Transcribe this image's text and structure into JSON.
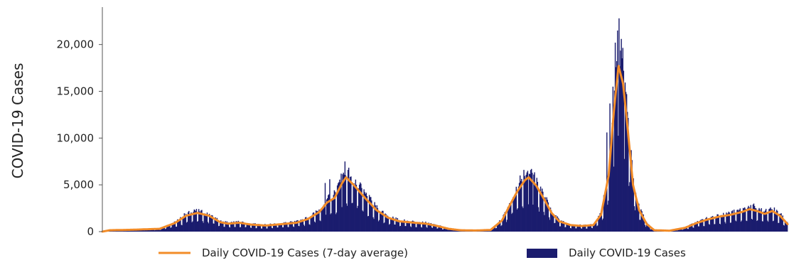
{
  "chart_data": {
    "type": "bar",
    "ylabel": "COVID-19 Cases",
    "xlabel": "",
    "ylim": [
      0,
      24000
    ],
    "yticks": [
      0,
      5000,
      10000,
      15000,
      20000
    ],
    "ytick_labels": [
      "0",
      "5,000",
      "10,000",
      "15,000",
      "20,000"
    ],
    "grid": false,
    "legend_position": "bottom",
    "series": [
      {
        "name": "Daily COVID-19 Cases (7-day average)",
        "kind": "line",
        "color": "#F28C28",
        "keypoints": [
          [
            0,
            0
          ],
          [
            10,
            150
          ],
          [
            40,
            200
          ],
          [
            75,
            300
          ],
          [
            95,
            900
          ],
          [
            110,
            1700
          ],
          [
            125,
            2000
          ],
          [
            140,
            1700
          ],
          [
            155,
            1000
          ],
          [
            165,
            850
          ],
          [
            180,
            950
          ],
          [
            195,
            750
          ],
          [
            215,
            650
          ],
          [
            235,
            800
          ],
          [
            255,
            950
          ],
          [
            270,
            1350
          ],
          [
            285,
            2100
          ],
          [
            295,
            3100
          ],
          [
            305,
            3600
          ],
          [
            315,
            5200
          ],
          [
            320,
            5800
          ],
          [
            330,
            5000
          ],
          [
            345,
            3600
          ],
          [
            360,
            2300
          ],
          [
            375,
            1500
          ],
          [
            390,
            1100
          ],
          [
            410,
            950
          ],
          [
            425,
            850
          ],
          [
            440,
            600
          ],
          [
            455,
            300
          ],
          [
            470,
            150
          ],
          [
            490,
            120
          ],
          [
            510,
            180
          ],
          [
            525,
            1200
          ],
          [
            535,
            2800
          ],
          [
            545,
            4300
          ],
          [
            555,
            5500
          ],
          [
            560,
            5800
          ],
          [
            570,
            4900
          ],
          [
            580,
            3500
          ],
          [
            590,
            2000
          ],
          [
            600,
            1100
          ],
          [
            615,
            700
          ],
          [
            630,
            600
          ],
          [
            645,
            700
          ],
          [
            655,
            1800
          ],
          [
            665,
            6000
          ],
          [
            672,
            13000
          ],
          [
            678,
            17700
          ],
          [
            684,
            15800
          ],
          [
            690,
            11000
          ],
          [
            697,
            5000
          ],
          [
            705,
            2300
          ],
          [
            715,
            800
          ],
          [
            725,
            150
          ],
          [
            745,
            100
          ],
          [
            765,
            400
          ],
          [
            780,
            900
          ],
          [
            795,
            1300
          ],
          [
            810,
            1600
          ],
          [
            825,
            1800
          ],
          [
            840,
            2100
          ],
          [
            850,
            2400
          ],
          [
            860,
            2200
          ],
          [
            870,
            1900
          ],
          [
            880,
            2200
          ],
          [
            890,
            1700
          ],
          [
            900,
            800
          ]
        ]
      },
      {
        "name": "Daily COVID-19 Cases",
        "kind": "bar",
        "color": "#1B1C6E",
        "n_days": 900,
        "noise": 0.12,
        "spikes": [
          [
            292,
            5200
          ],
          [
            298,
            5600
          ],
          [
            313,
            6200
          ],
          [
            318,
            7500
          ],
          [
            322,
            6600
          ],
          [
            326,
            5900
          ],
          [
            548,
            6000
          ],
          [
            553,
            6600
          ],
          [
            558,
            6500
          ],
          [
            566,
            6100
          ],
          [
            662,
            10600
          ],
          [
            666,
            13700
          ],
          [
            670,
            15500
          ],
          [
            673,
            20200
          ],
          [
            676,
            21500
          ],
          [
            678,
            22800
          ],
          [
            681,
            20600
          ],
          [
            684,
            17200
          ],
          [
            688,
            14700
          ],
          [
            855,
            3000
          ],
          [
            875,
            2400
          ]
        ]
      }
    ],
    "legend": [
      {
        "label": "Daily COVID-19 Cases (7-day average)",
        "color": "#F28C28",
        "kind": "line"
      },
      {
        "label": "Daily COVID-19 Cases",
        "color": "#1B1C6E",
        "kind": "bar"
      }
    ]
  }
}
